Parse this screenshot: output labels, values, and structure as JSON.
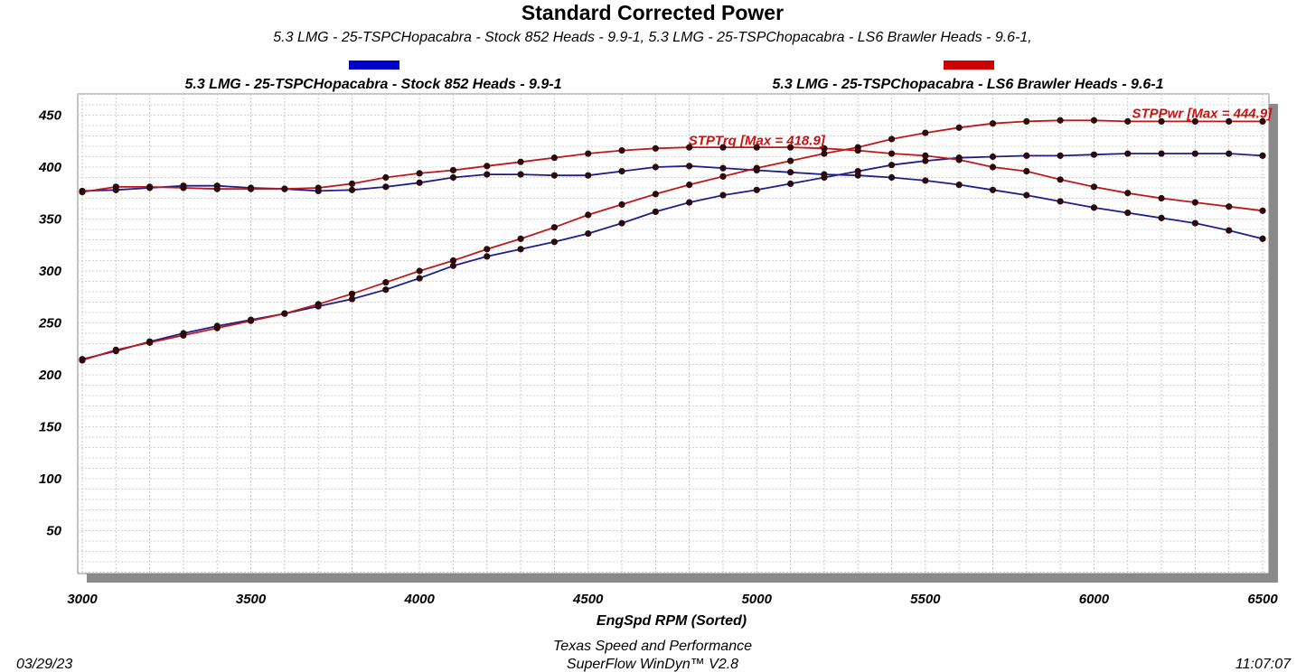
{
  "chart_data": {
    "type": "line",
    "title": "Standard Corrected Power",
    "subtitle": "5.3 LMG - 25-TSPCHopacabra - Stock 852 Heads - 9.9-1, 5.3 LMG - 25-TSPChopacabra - LS6 Brawler Heads - 9.6-1,",
    "xlabel": "EngSpd  RPM   (Sorted)",
    "ylabel": "",
    "xlim": [
      3000,
      6500
    ],
    "ylim": [
      0,
      480
    ],
    "x_ticks": [
      3000,
      3500,
      4000,
      4500,
      5000,
      5500,
      6000,
      6500
    ],
    "y_ticks": [
      50,
      100,
      150,
      200,
      250,
      300,
      350,
      400,
      450
    ],
    "x": [
      3000,
      3100,
      3200,
      3300,
      3400,
      3500,
      3600,
      3700,
      3800,
      3900,
      4000,
      4100,
      4200,
      4300,
      4400,
      4500,
      4600,
      4700,
      4800,
      4900,
      5000,
      5100,
      5200,
      5300,
      5400,
      5500,
      5600,
      5700,
      5800,
      5900,
      6000,
      6100,
      6200,
      6300,
      6400,
      6500
    ],
    "legend": [
      {
        "name": "5.3 LMG - 25-TSPCHopacabra - Stock 852 Heads - 9.9-1",
        "color": "#0000cc"
      },
      {
        "name": "5.3 LMG - 25-TSPChopacabra - LS6 Brawler Heads - 9.6-1",
        "color": "#cc0000"
      }
    ],
    "series": [
      {
        "name": "STPTrq - Stock 852 Heads",
        "color": "#1e1e8c",
        "values": [
          377,
          378,
          380,
          382,
          382,
          380,
          379,
          377,
          378,
          381,
          385,
          390,
          393,
          393,
          392,
          392,
          396,
          400,
          401,
          399,
          397,
          395,
          393,
          392,
          390,
          387,
          383,
          378,
          373,
          367,
          361,
          356,
          351,
          346,
          339,
          331
        ]
      },
      {
        "name": "STPPwr - Stock 852 Heads",
        "color": "#1e1e8c",
        "values": [
          215,
          223,
          232,
          240,
          247,
          253,
          259,
          266,
          273,
          282,
          293,
          305,
          314,
          321,
          328,
          336,
          346,
          357,
          366,
          373,
          378,
          384,
          390,
          396,
          402,
          406,
          409,
          410,
          411,
          411,
          412,
          413,
          413,
          413,
          413,
          411
        ]
      },
      {
        "name": "STPTrq - LS6 Brawler Heads",
        "color": "#c01818",
        "values": [
          376,
          381,
          381,
          380,
          379,
          379,
          379,
          380,
          384,
          390,
          394,
          397,
          401,
          405,
          409,
          413,
          416,
          418,
          419,
          419,
          419,
          419,
          418,
          416,
          413,
          411,
          407,
          400,
          396,
          388,
          381,
          375,
          370,
          366,
          362,
          358
        ]
      },
      {
        "name": "STPPwr - LS6 Brawler Heads",
        "color": "#c01818",
        "values": [
          214,
          224,
          231,
          238,
          245,
          252,
          259,
          268,
          278,
          289,
          300,
          310,
          321,
          331,
          342,
          354,
          364,
          374,
          383,
          391,
          399,
          406,
          413,
          419,
          427,
          433,
          438,
          442,
          444,
          445,
          445,
          444,
          444,
          444,
          444,
          444
        ]
      }
    ],
    "annotations": [
      {
        "text": "STPTrq [Max = 418.9]",
        "color": "#cc1111",
        "x": 5000,
        "y": 418.9
      },
      {
        "text": "STPPwr [Max = 444.9]",
        "color": "#cc1111",
        "x": 6320,
        "y": 444.9
      }
    ]
  },
  "footer": {
    "date": "03/29/23",
    "company": "Texas Speed and Performance",
    "software": "SuperFlow WinDyn™  V2.8",
    "time": "11:07:07"
  }
}
